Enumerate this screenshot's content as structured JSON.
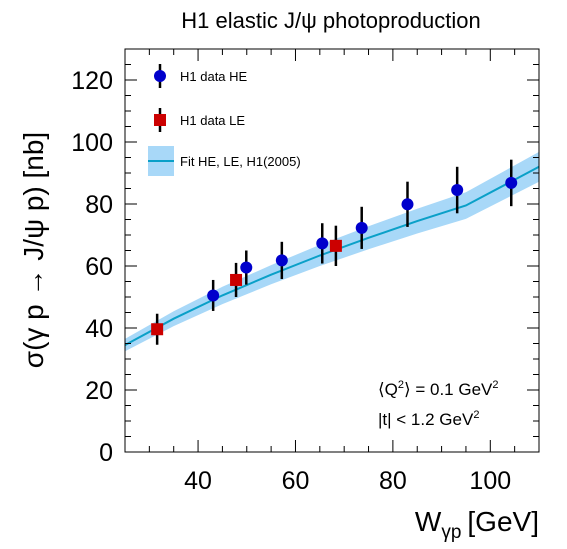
{
  "chart_data": {
    "type": "scatter",
    "title": "H1 elastic J/ψ photoproduction",
    "xlabel_main": "W",
    "xlabel_sub": "γp",
    "xlabel_unit": "[GeV]",
    "ylabel": "σ(γ p → J/ψ p) [nb]",
    "xlim": [
      25,
      110
    ],
    "ylim": [
      0,
      130
    ],
    "x_ticks": [
      40,
      60,
      80,
      100
    ],
    "y_ticks": [
      0,
      20,
      40,
      60,
      80,
      100,
      120
    ],
    "grid": false,
    "legend_position": "top-left",
    "series": [
      {
        "name": "H1 data HE",
        "marker": "circle",
        "color": "#0000cc",
        "points": [
          {
            "x": 43.1,
            "y": 50.5,
            "err": 5.0
          },
          {
            "x": 49.9,
            "y": 59.5,
            "err": 5.5
          },
          {
            "x": 57.2,
            "y": 61.8,
            "err": 6.0
          },
          {
            "x": 65.5,
            "y": 67.3,
            "err": 6.5
          },
          {
            "x": 73.6,
            "y": 72.3,
            "err": 6.8
          },
          {
            "x": 83.0,
            "y": 79.9,
            "err": 7.3
          },
          {
            "x": 93.2,
            "y": 84.5,
            "err": 7.5
          },
          {
            "x": 104.3,
            "y": 86.8,
            "err": 7.5
          }
        ]
      },
      {
        "name": "H1 data LE",
        "marker": "square",
        "color": "#cc0000",
        "points": [
          {
            "x": 31.6,
            "y": 39.6,
            "err": 5.0
          },
          {
            "x": 47.8,
            "y": 55.5,
            "err": 5.5
          },
          {
            "x": 68.3,
            "y": 66.5,
            "err": 6.5
          }
        ]
      },
      {
        "name": "Fit HE, LE, H1(2005)",
        "type": "line_band",
        "color": "#0aa0c8",
        "band_color": "#a8d8f8",
        "x": [
          25,
          35,
          45,
          55,
          65,
          75,
          85,
          95,
          110
        ],
        "y": [
          34.5,
          43.0,
          50.5,
          57.2,
          63.4,
          69.1,
          74.5,
          79.5,
          92.0
        ],
        "band_halfwidth": [
          2.0,
          2.4,
          2.8,
          3.1,
          3.4,
          3.7,
          4.0,
          4.3,
          4.8
        ]
      }
    ],
    "annotations": [
      {
        "before": "⟨Q",
        "sup": "2",
        "after": "⟩ = 0.1 GeV",
        "sup2": "2"
      },
      {
        "before": "|t| < 1.2 GeV",
        "sup": "2"
      }
    ]
  }
}
